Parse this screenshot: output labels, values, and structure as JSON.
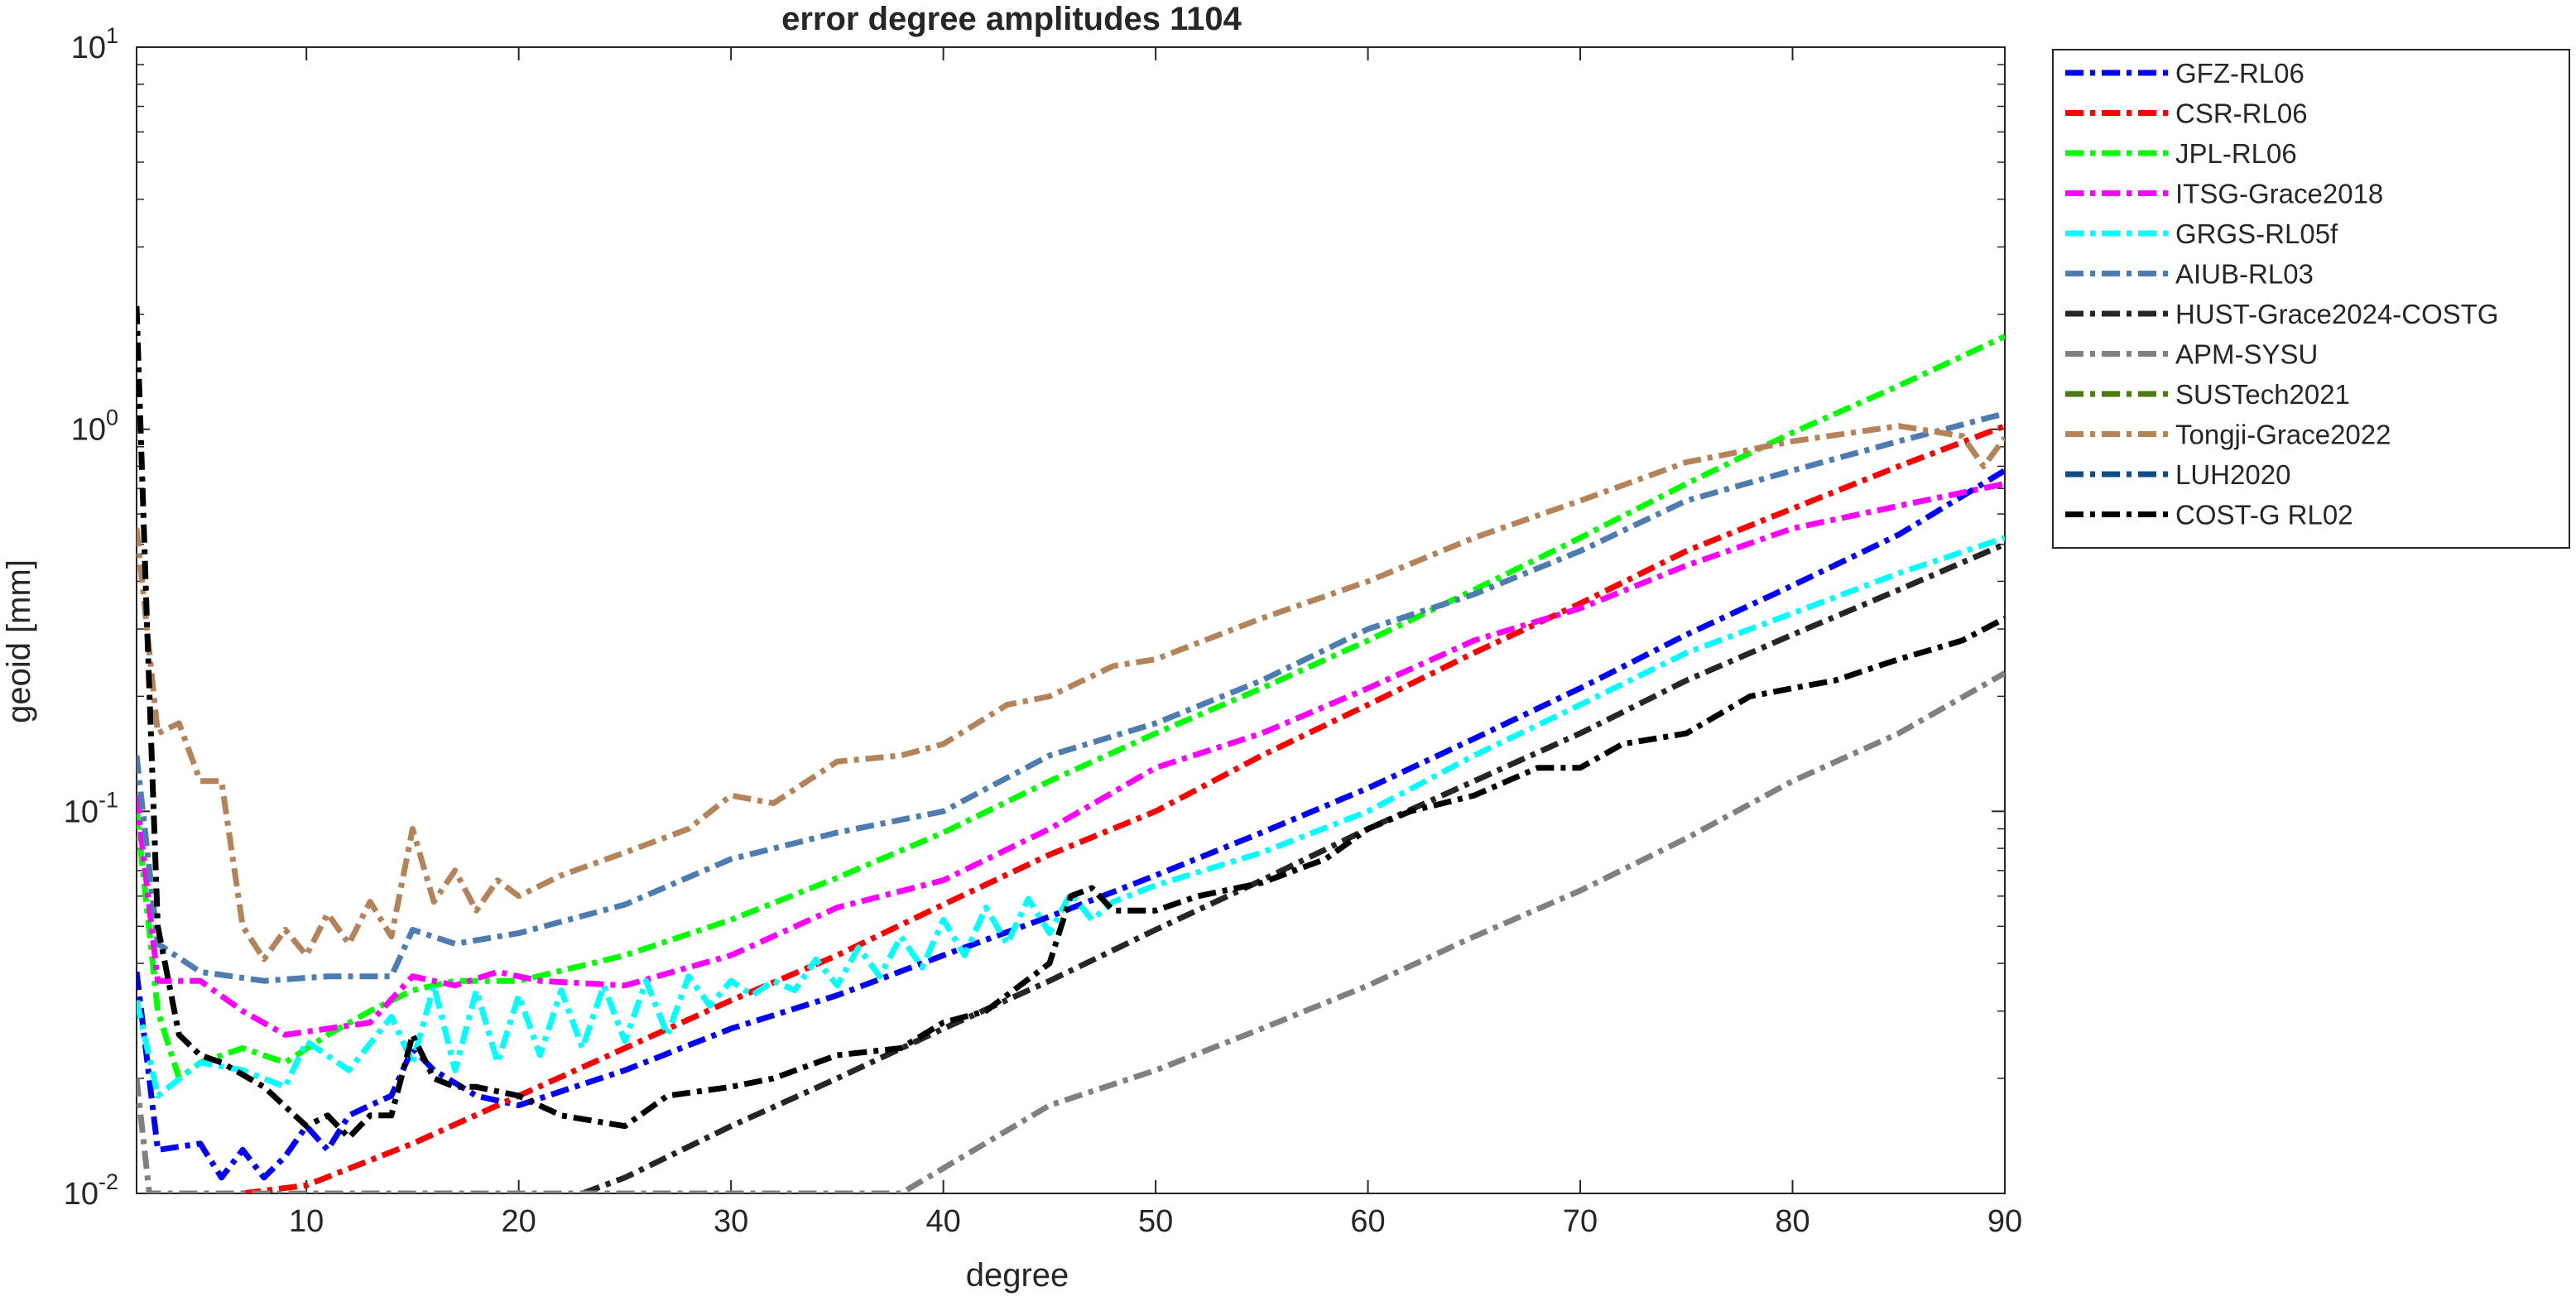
{
  "chart_data": {
    "type": "line",
    "title": "error degree amplitudes 1104",
    "xlabel": "degree",
    "ylabel": "geoid [mm]",
    "xlim": [
      2,
      90
    ],
    "ylim": [
      0.01,
      10
    ],
    "yscale": "log",
    "xticks": [
      10,
      20,
      30,
      40,
      50,
      60,
      70,
      80,
      90
    ],
    "yticks": [
      {
        "base": "10",
        "exp": "-2"
      },
      {
        "base": "10",
        "exp": "-1"
      },
      {
        "base": "10",
        "exp": "0"
      },
      {
        "base": "10",
        "exp": "1"
      }
    ],
    "grid": false,
    "legend_position": "outside-top-right",
    "series": [
      {
        "name": "GFZ-RL06",
        "color": "#0000ff",
        "x": [
          2,
          3,
          5,
          6,
          7,
          8,
          9,
          10,
          11,
          12,
          13,
          14,
          15,
          16,
          18,
          20,
          25,
          30,
          35,
          40,
          45,
          50,
          55,
          60,
          65,
          70,
          75,
          80,
          85,
          90
        ],
        "y": [
          0.038,
          0.013,
          0.0135,
          0.011,
          0.013,
          0.011,
          0.0125,
          0.015,
          0.013,
          0.016,
          0.017,
          0.018,
          0.024,
          0.021,
          0.018,
          0.017,
          0.021,
          0.027,
          0.033,
          0.042,
          0.053,
          0.068,
          0.088,
          0.115,
          0.155,
          0.21,
          0.29,
          0.39,
          0.53,
          0.78
        ]
      },
      {
        "name": "CSR-RL06",
        "color": "#ff0000",
        "x": [
          7,
          10,
          15,
          20,
          25,
          30,
          35,
          40,
          45,
          50,
          55,
          60,
          65,
          70,
          75,
          80,
          85,
          90
        ],
        "y": [
          0.01,
          0.0105,
          0.0135,
          0.018,
          0.024,
          0.032,
          0.042,
          0.057,
          0.077,
          0.1,
          0.14,
          0.19,
          0.26,
          0.35,
          0.48,
          0.62,
          0.8,
          1.02
        ]
      },
      {
        "name": "JPL-RL06",
        "color": "#00ff00",
        "x": [
          2,
          3,
          4,
          5,
          7,
          9,
          11,
          13,
          15,
          17,
          20,
          25,
          30,
          35,
          40,
          45,
          50,
          55,
          60,
          65,
          70,
          75,
          80,
          85,
          90
        ],
        "y": [
          0.1,
          0.03,
          0.02,
          0.022,
          0.024,
          0.022,
          0.026,
          0.03,
          0.034,
          0.036,
          0.036,
          0.042,
          0.052,
          0.067,
          0.088,
          0.12,
          0.16,
          0.21,
          0.28,
          0.38,
          0.52,
          0.72,
          0.98,
          1.3,
          1.75
        ]
      },
      {
        "name": "ITSG-Grace2018",
        "color": "#ff00ff",
        "x": [
          2,
          3,
          5,
          7,
          9,
          11,
          13,
          15,
          17,
          19,
          21,
          25,
          30,
          35,
          40,
          45,
          50,
          55,
          60,
          65,
          70,
          75,
          80,
          85,
          90
        ],
        "y": [
          0.11,
          0.036,
          0.036,
          0.03,
          0.026,
          0.027,
          0.028,
          0.037,
          0.035,
          0.038,
          0.036,
          0.035,
          0.042,
          0.056,
          0.066,
          0.09,
          0.13,
          0.16,
          0.21,
          0.28,
          0.34,
          0.44,
          0.55,
          0.63,
          0.72
        ]
      },
      {
        "name": "GRGS-RL05f",
        "color": "#00ffff",
        "x": [
          2,
          3,
          5,
          7,
          9,
          10,
          12,
          14,
          15,
          16,
          17,
          18,
          19,
          20,
          21,
          22,
          23,
          24,
          25,
          26,
          27,
          28,
          29,
          30,
          31,
          32,
          33,
          34,
          35,
          36,
          37,
          38,
          39,
          40,
          41,
          42,
          43,
          44,
          45,
          46,
          47,
          48,
          50,
          55,
          60,
          65,
          70,
          75,
          80,
          85,
          90
        ],
        "y": [
          0.032,
          0.018,
          0.022,
          0.021,
          0.019,
          0.025,
          0.021,
          0.029,
          0.022,
          0.035,
          0.021,
          0.034,
          0.022,
          0.033,
          0.023,
          0.034,
          0.024,
          0.035,
          0.025,
          0.036,
          0.026,
          0.037,
          0.031,
          0.036,
          0.033,
          0.036,
          0.034,
          0.041,
          0.035,
          0.044,
          0.037,
          0.047,
          0.039,
          0.052,
          0.042,
          0.056,
          0.045,
          0.059,
          0.048,
          0.061,
          0.052,
          0.058,
          0.064,
          0.078,
          0.1,
          0.14,
          0.19,
          0.26,
          0.33,
          0.42,
          0.52
        ]
      },
      {
        "name": "AIUB-RL03",
        "color": "#4c7cb0",
        "x": [
          2,
          3,
          5,
          8,
          11,
          14,
          15,
          17,
          20,
          25,
          30,
          35,
          40,
          45,
          50,
          55,
          60,
          65,
          70,
          75,
          80,
          85,
          90
        ],
        "y": [
          0.14,
          0.045,
          0.038,
          0.036,
          0.037,
          0.037,
          0.049,
          0.045,
          0.048,
          0.057,
          0.075,
          0.088,
          0.1,
          0.14,
          0.17,
          0.22,
          0.3,
          0.37,
          0.48,
          0.65,
          0.78,
          0.93,
          1.1
        ]
      },
      {
        "name": "HUST-Grace2024-COSTG",
        "color": "#262626",
        "x": [
          23,
          25,
          30,
          35,
          40,
          45,
          50,
          55,
          60,
          65,
          70,
          75,
          80,
          85,
          90
        ],
        "y": [
          0.01,
          0.011,
          0.015,
          0.02,
          0.027,
          0.036,
          0.049,
          0.066,
          0.09,
          0.12,
          0.16,
          0.22,
          0.29,
          0.38,
          0.5
        ]
      },
      {
        "name": "APM-SYSU",
        "color": "#808080",
        "x": [
          2,
          2.6,
          38,
          45,
          50,
          55,
          60,
          65,
          70,
          75,
          80,
          85,
          90
        ],
        "y": [
          0.02,
          0.01,
          0.01,
          0.017,
          0.021,
          0.027,
          0.035,
          0.047,
          0.062,
          0.085,
          0.12,
          0.16,
          0.23
        ]
      },
      {
        "name": "SUSTech2021",
        "color": "#4a7a10",
        "x": [],
        "y": []
      },
      {
        "name": "Tongji-Grace2022",
        "color": "#b5835a",
        "x": [
          2,
          3,
          4,
          5,
          6,
          7,
          8,
          9,
          10,
          11,
          12,
          13,
          14,
          15,
          16,
          17,
          18,
          19,
          20,
          22,
          25,
          28,
          30,
          32,
          35,
          38,
          40,
          43,
          45,
          48,
          50,
          55,
          60,
          65,
          70,
          75,
          80,
          85,
          88,
          89,
          90
        ],
        "y": [
          0.55,
          0.16,
          0.17,
          0.12,
          0.12,
          0.05,
          0.041,
          0.049,
          0.042,
          0.054,
          0.045,
          0.058,
          0.047,
          0.09,
          0.058,
          0.07,
          0.055,
          0.066,
          0.06,
          0.068,
          0.078,
          0.09,
          0.11,
          0.105,
          0.135,
          0.14,
          0.15,
          0.19,
          0.2,
          0.24,
          0.25,
          0.32,
          0.4,
          0.52,
          0.65,
          0.82,
          0.93,
          1.02,
          0.96,
          0.8,
          0.95
        ]
      },
      {
        "name": "LUH2020",
        "color": "#0f4c81",
        "x": [],
        "y": []
      },
      {
        "name": "COST-G RL02",
        "color": "#000000",
        "x": [
          2,
          2.5,
          3,
          4,
          5,
          6,
          8,
          10,
          11,
          12,
          13,
          14,
          15,
          16,
          17,
          18,
          20,
          22,
          25,
          27,
          30,
          32,
          35,
          38,
          40,
          42,
          45,
          46,
          47,
          48,
          50,
          52,
          55,
          58,
          60,
          62,
          65,
          68,
          70,
          72,
          75,
          78,
          80,
          82,
          85,
          88,
          90
        ],
        "y": [
          2.1,
          0.3,
          0.05,
          0.026,
          0.023,
          0.022,
          0.019,
          0.015,
          0.016,
          0.014,
          0.016,
          0.016,
          0.026,
          0.02,
          0.019,
          0.019,
          0.018,
          0.016,
          0.015,
          0.018,
          0.019,
          0.02,
          0.023,
          0.024,
          0.028,
          0.03,
          0.04,
          0.06,
          0.063,
          0.055,
          0.055,
          0.06,
          0.065,
          0.075,
          0.09,
          0.1,
          0.11,
          0.13,
          0.13,
          0.15,
          0.16,
          0.2,
          0.21,
          0.22,
          0.25,
          0.28,
          0.32
        ]
      }
    ]
  }
}
